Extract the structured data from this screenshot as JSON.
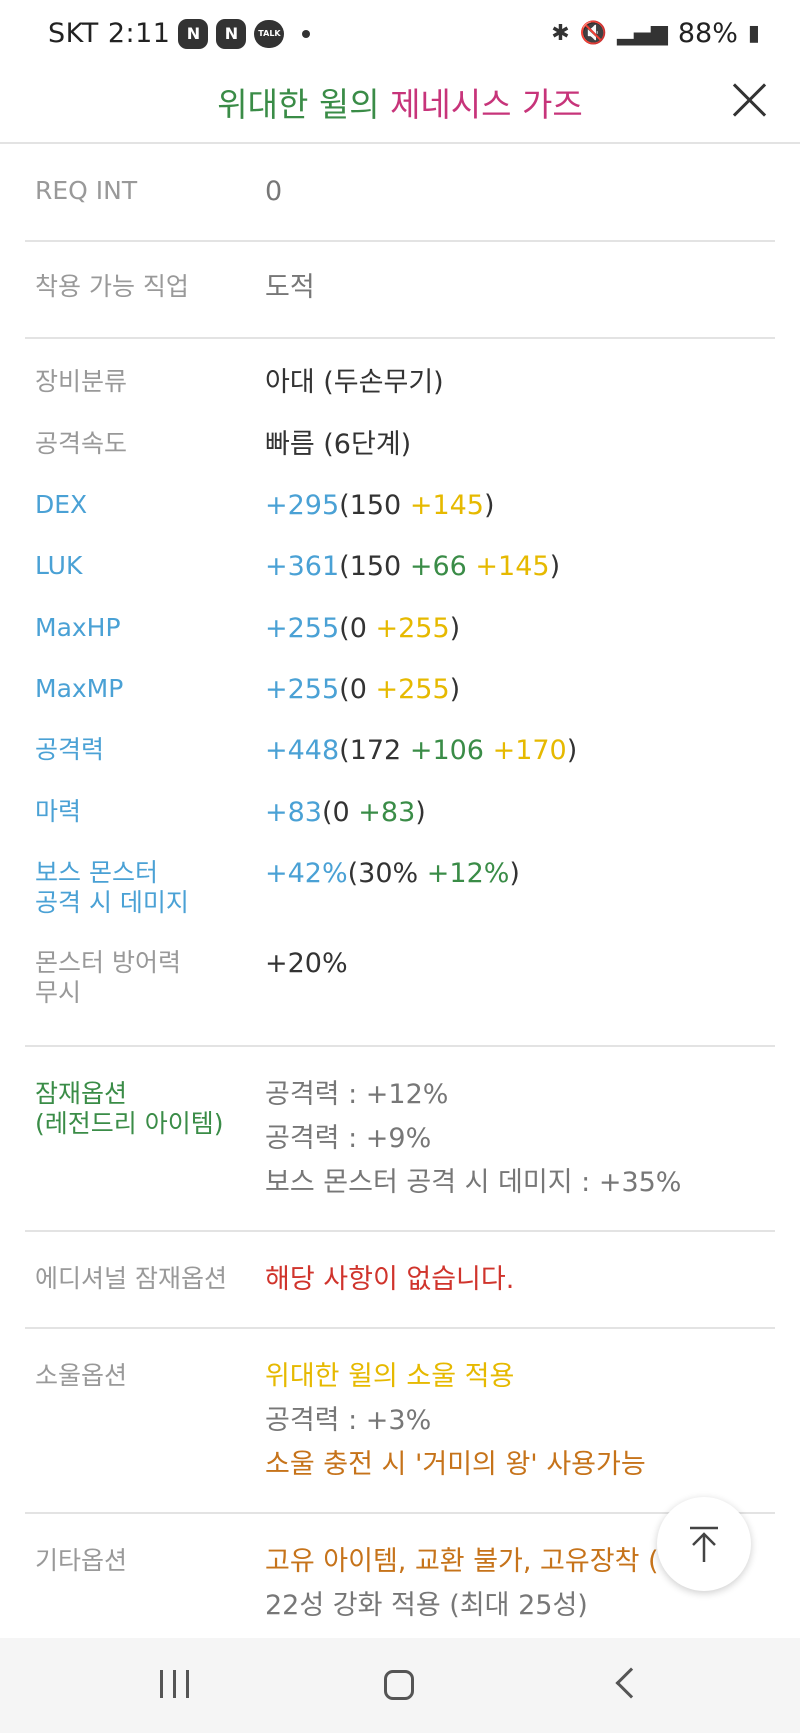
{
  "status_bar": {
    "carrier_time": "SKT 2:11",
    "badges": [
      "N",
      "N",
      "TALK"
    ],
    "battery": "88%"
  },
  "header": {
    "title_part1": "위대한 윌의",
    "title_part2": "제네시스 가즈"
  },
  "rows": {
    "req_int": {
      "label": "REQ INT",
      "value": "0"
    },
    "job": {
      "label": "착용 가능 직업",
      "value": "도적"
    },
    "category": {
      "label": "장비분류",
      "value": "아대 (두손무기)"
    },
    "speed": {
      "label": "공격속도",
      "value": "빠름 (6단계)"
    },
    "dex": {
      "label": "DEX",
      "total": "+295",
      "base": "(150 ",
      "star": "+145",
      "close": ")"
    },
    "luk": {
      "label": "LUK",
      "total": "+361",
      "base": "(150 ",
      "bonus": "+66 ",
      "star": "+145",
      "close": ")"
    },
    "maxhp": {
      "label": "MaxHP",
      "total": "+255",
      "base": "(0 ",
      "star": "+255",
      "close": ")"
    },
    "maxmp": {
      "label": "MaxMP",
      "total": "+255",
      "base": "(0 ",
      "star": "+255",
      "close": ")"
    },
    "attack": {
      "label": "공격력",
      "total": "+448",
      "base": "(172 ",
      "bonus": "+106 ",
      "star": "+170",
      "close": ")"
    },
    "magic": {
      "label": "마력",
      "total": "+83",
      "base": "(0 ",
      "bonus": "+83",
      "close": ")"
    },
    "boss_damage": {
      "label_line1": "보스 몬스터",
      "label_line2": "공격 시 데미지",
      "total": "+42%",
      "base": "(30% ",
      "bonus": "+12%",
      "close": ")"
    },
    "ignore_def": {
      "label_line1": "몬스터 방어력",
      "label_line2": "무시",
      "value": "+20%"
    }
  },
  "potential": {
    "label_line1": "잠재옵션",
    "label_line2": "(레전드리 아이템)",
    "lines": [
      "공격력 : +12%",
      "공격력 : +9%",
      "보스 몬스터 공격 시 데미지 : +35%"
    ]
  },
  "additional": {
    "label": "에디셔널 잠재옵션",
    "value": "해당 사항이 없습니다."
  },
  "soul": {
    "label": "소울옵션",
    "line1": "위대한 윌의 소울 적용",
    "line2": "공격력 : +3%",
    "line3": "소울 충전 시 '거미의 왕' 사용가능"
  },
  "etc": {
    "label": "기타옵션",
    "line1": "고유 아이템, 교환 불가, 고유장착 (",
    "line2": "22성 강화 적용 (최대 25성)"
  },
  "colors": {
    "accent_green": "#3a8c47",
    "accent_pink": "#c7347a",
    "stat_blue": "#4aa1d5",
    "star_yellow": "#e6b900",
    "warning_red": "#d0342c",
    "soul_orange": "#c6731a"
  }
}
